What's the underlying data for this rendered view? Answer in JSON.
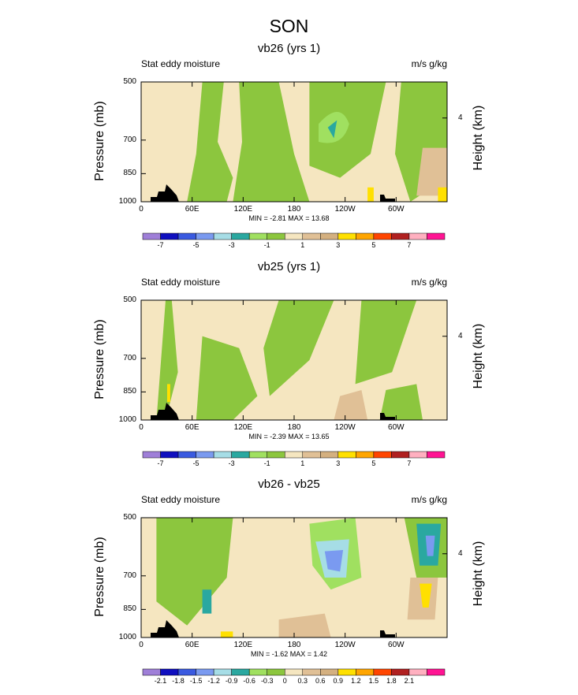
{
  "figure": {
    "title": "SON"
  },
  "axis_labels": {
    "left": "Pressure (mb)",
    "right": "Height (km)"
  },
  "chart_data": [
    {
      "type": "contour",
      "title": "vb26 (yrs 1)",
      "left_string": "Stat eddy moisture",
      "right_string": "m/s g/kg",
      "xlabel": "",
      "ylabel": "Pressure (mb)",
      "y2label": "Height (km)",
      "x_ticks": [
        "0",
        "60E",
        "120E",
        "180",
        "120W",
        "60W"
      ],
      "y_ticks": [
        "500",
        "700",
        "850",
        "1000"
      ],
      "y2_ticks": [
        "4"
      ],
      "ylim": [
        1000,
        500
      ],
      "xlim": [
        0,
        360
      ],
      "min_max": "MIN =  -2.81  MAX =  13.68",
      "colorbar": {
        "labels": [
          "-7",
          "-5",
          "-3",
          "-1",
          "1",
          "3",
          "5",
          "7"
        ],
        "colors": [
          "#9f7fd8",
          "#0f0fbf",
          "#3a5ae0",
          "#7a9af0",
          "#a6dde6",
          "#2aa8a0",
          "#a0e060",
          "#8cc63e",
          "#f5e6c0",
          "#e0c096",
          "#d4b080",
          "#ffe000",
          "#ffa500",
          "#ff4500",
          "#b02020",
          "#ffb0c0",
          "#ff1493"
        ]
      }
    },
    {
      "type": "contour",
      "title": "vb25 (yrs 1)",
      "left_string": "Stat eddy moisture",
      "right_string": "m/s g/kg",
      "xlabel": "",
      "ylabel": "Pressure (mb)",
      "y2label": "Height (km)",
      "x_ticks": [
        "0",
        "60E",
        "120E",
        "180",
        "120W",
        "60W"
      ],
      "y_ticks": [
        "500",
        "700",
        "850",
        "1000"
      ],
      "y2_ticks": [
        "4"
      ],
      "ylim": [
        1000,
        500
      ],
      "xlim": [
        0,
        360
      ],
      "min_max": "MIN =  -2.39  MAX =  13.65",
      "colorbar": {
        "labels": [
          "-7",
          "-5",
          "-3",
          "-1",
          "1",
          "3",
          "5",
          "7"
        ],
        "colors": [
          "#9f7fd8",
          "#0f0fbf",
          "#3a5ae0",
          "#7a9af0",
          "#a6dde6",
          "#2aa8a0",
          "#a0e060",
          "#8cc63e",
          "#f5e6c0",
          "#e0c096",
          "#d4b080",
          "#ffe000",
          "#ffa500",
          "#ff4500",
          "#b02020",
          "#ffb0c0",
          "#ff1493"
        ]
      }
    },
    {
      "type": "contour",
      "title": "vb26 - vb25",
      "left_string": "Stat eddy moisture",
      "right_string": "m/s g/kg",
      "xlabel": "",
      "ylabel": "Pressure (mb)",
      "y2label": "Height (km)",
      "x_ticks": [
        "0",
        "60E",
        "120E",
        "180",
        "120W",
        "60W"
      ],
      "y_ticks": [
        "500",
        "700",
        "850",
        "1000"
      ],
      "y2_ticks": [
        "4"
      ],
      "ylim": [
        1000,
        500
      ],
      "xlim": [
        0,
        360
      ],
      "min_max": "MIN =  -1.62  MAX =  1.42",
      "colorbar": {
        "labels": [
          "-2.1",
          "-1.8",
          "-1.5",
          "-1.2",
          "-0.9",
          "-0.6",
          "-0.3",
          "0",
          "0.3",
          "0.6",
          "0.9",
          "1.2",
          "1.5",
          "1.8",
          "2.1"
        ],
        "colors": [
          "#9f7fd8",
          "#0f0fbf",
          "#3a5ae0",
          "#7a9af0",
          "#a6dde6",
          "#2aa8a0",
          "#a0e060",
          "#8cc63e",
          "#f5e6c0",
          "#e0c096",
          "#d4b080",
          "#ffe000",
          "#ffa500",
          "#ff4500",
          "#b02020",
          "#ffb0c0",
          "#ff1493"
        ]
      }
    }
  ]
}
